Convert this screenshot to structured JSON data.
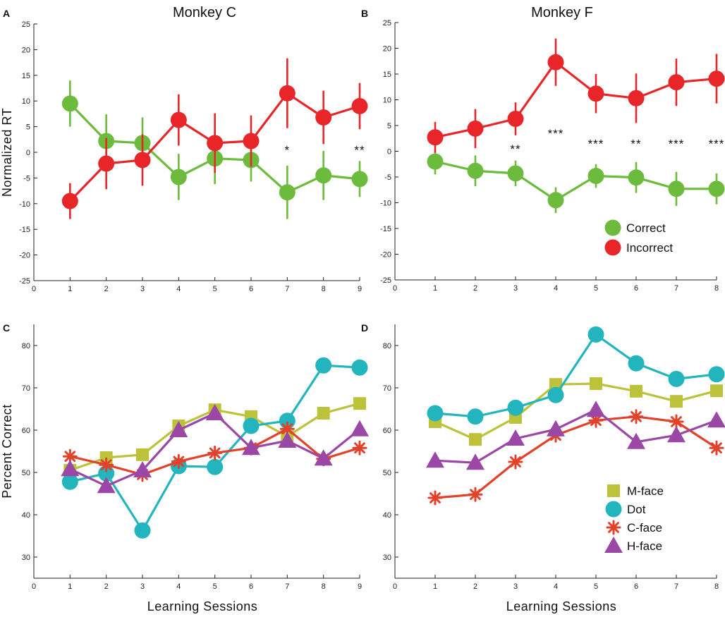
{
  "colors": {
    "correct": "#6cbb3c",
    "incorrect": "#e8262a",
    "mface": "#bcc23a",
    "dot": "#23b5bd",
    "cface": "#e2412a",
    "hface": "#9b47a6"
  },
  "chart_data": [
    {
      "id": "A",
      "letter": "A",
      "type": "line",
      "title": "Monkey C",
      "ylabel": "Normalized RT",
      "xlabel": "",
      "xlim": [
        0,
        9
      ],
      "ylim": [
        -25,
        25
      ],
      "xticks": [
        0,
        1,
        2,
        3,
        4,
        5,
        6,
        7,
        8,
        9
      ],
      "yticks": [
        -25,
        -20,
        -15,
        -10,
        -5,
        0,
        5,
        10,
        15,
        20,
        25
      ],
      "series": [
        {
          "name": "Correct",
          "marker": "circle",
          "color_key": "correct",
          "x": [
            1,
            2,
            3,
            4,
            5,
            6,
            7,
            8,
            9
          ],
          "values": [
            9.5,
            2.2,
            1.8,
            -4.8,
            -1.2,
            -1.5,
            -7.8,
            -4.5,
            -5.2
          ],
          "errors": [
            4.5,
            5.2,
            5.0,
            4.5,
            5.0,
            4.2,
            5.2,
            4.8,
            3.5
          ]
        },
        {
          "name": "Incorrect",
          "marker": "circle",
          "color_key": "incorrect",
          "x": [
            1,
            2,
            3,
            4,
            5,
            6,
            7,
            8,
            9
          ],
          "values": [
            -9.5,
            -2.2,
            -1.5,
            6.3,
            1.8,
            2.2,
            11.5,
            6.8,
            9.0
          ],
          "errors": [
            3.5,
            5.0,
            5.0,
            5.0,
            5.8,
            5.0,
            6.8,
            5.2,
            4.5
          ]
        }
      ],
      "annotations": [
        {
          "x": 7,
          "y": 0.5,
          "text": "*"
        },
        {
          "x": 9,
          "y": 0.5,
          "text": "**"
        }
      ]
    },
    {
      "id": "B",
      "letter": "B",
      "type": "line",
      "title": "Monkey F",
      "ylabel": "",
      "xlabel": "",
      "xlim": [
        0,
        8
      ],
      "ylim": [
        -25,
        25
      ],
      "xticks": [
        0,
        1,
        2,
        3,
        4,
        5,
        6,
        7,
        8
      ],
      "yticks": [
        -25,
        -20,
        -15,
        -10,
        -5,
        0,
        5,
        10,
        15,
        20,
        25
      ],
      "series": [
        {
          "name": "Correct",
          "marker": "circle",
          "color_key": "correct",
          "x": [
            1,
            2,
            3,
            4,
            5,
            6,
            7,
            8
          ],
          "values": [
            -2.0,
            -3.8,
            -4.3,
            -9.5,
            -4.8,
            -5.1,
            -7.3,
            -7.3
          ],
          "errors": [
            2.5,
            3.0,
            2.5,
            2.5,
            2.3,
            3.0,
            3.3,
            3.0
          ]
        },
        {
          "name": "Incorrect",
          "marker": "circle",
          "color_key": "incorrect",
          "x": [
            1,
            2,
            3,
            4,
            5,
            6,
            7,
            8
          ],
          "values": [
            2.7,
            4.4,
            6.3,
            17.3,
            11.2,
            10.3,
            13.4,
            14.1
          ],
          "errors": [
            3.0,
            3.8,
            3.2,
            4.6,
            3.8,
            4.8,
            4.6,
            4.8
          ]
        }
      ],
      "annotations": [
        {
          "x": 3,
          "y": 0.5,
          "text": "**"
        },
        {
          "x": 4,
          "y": 3.5,
          "text": "***"
        },
        {
          "x": 5,
          "y": 1.5,
          "text": "***"
        },
        {
          "x": 6,
          "y": 1.5,
          "text": "**"
        },
        {
          "x": 7,
          "y": 1.5,
          "text": "***"
        },
        {
          "x": 8,
          "y": 1.5,
          "text": "***"
        }
      ],
      "legend": {
        "placement": "bottom-right",
        "entries": [
          {
            "label": "Correct",
            "marker": "circle",
            "color_key": "correct"
          },
          {
            "label": "Incorrect",
            "marker": "circle",
            "color_key": "incorrect"
          }
        ]
      }
    },
    {
      "id": "C",
      "letter": "C",
      "type": "line",
      "title": "",
      "ylabel": "Percent Correct",
      "xlabel": "Learning Sessions",
      "xlim": [
        0,
        9
      ],
      "ylim": [
        25,
        85
      ],
      "xticks": [
        0,
        1,
        2,
        3,
        4,
        5,
        6,
        7,
        8,
        9
      ],
      "yticks": [
        30,
        40,
        50,
        60,
        70,
        80
      ],
      "series": [
        {
          "name": "M-face",
          "marker": "square",
          "color_key": "mface",
          "x": [
            1,
            2,
            3,
            4,
            5,
            6,
            7,
            8,
            9
          ],
          "values": [
            50.5,
            53.5,
            54.2,
            61.0,
            64.8,
            63.2,
            58.5,
            64.0,
            66.3
          ]
        },
        {
          "name": "Dot",
          "marker": "circle",
          "color_key": "dot",
          "x": [
            1,
            2,
            3,
            4,
            5,
            6,
            7,
            8,
            9
          ],
          "values": [
            47.8,
            49.8,
            36.3,
            51.5,
            51.3,
            61.0,
            62.2,
            75.3,
            74.8
          ]
        },
        {
          "name": "C-face",
          "marker": "asterisk",
          "color_key": "cface",
          "x": [
            1,
            2,
            3,
            4,
            5,
            6,
            7,
            8,
            9
          ],
          "values": [
            53.8,
            51.8,
            49.5,
            52.6,
            54.6,
            55.8,
            60.3,
            53.2,
            55.8
          ]
        },
        {
          "name": "H-face",
          "marker": "triangle",
          "color_key": "hface",
          "x": [
            1,
            2,
            3,
            4,
            5,
            6,
            7,
            8,
            9
          ],
          "values": [
            50.8,
            46.8,
            50.5,
            60.0,
            64.0,
            55.8,
            57.5,
            53.3,
            60.2
          ]
        }
      ]
    },
    {
      "id": "D",
      "letter": "D",
      "type": "line",
      "title": "",
      "ylabel": "",
      "xlabel": "Learning Sessions",
      "xlim": [
        0,
        8
      ],
      "ylim": [
        25,
        85
      ],
      "xticks": [
        0,
        1,
        2,
        3,
        4,
        5,
        6,
        7,
        8
      ],
      "yticks": [
        30,
        40,
        50,
        60,
        70,
        80
      ],
      "series": [
        {
          "name": "M-face",
          "marker": "square",
          "color_key": "mface",
          "x": [
            1,
            2,
            3,
            4,
            5,
            6,
            7,
            8
          ],
          "values": [
            62.0,
            57.8,
            63.0,
            70.8,
            71.0,
            69.2,
            66.8,
            69.3
          ]
        },
        {
          "name": "Dot",
          "marker": "circle",
          "color_key": "dot",
          "x": [
            1,
            2,
            3,
            4,
            5,
            6,
            7,
            8
          ],
          "values": [
            64.0,
            63.2,
            65.3,
            68.3,
            82.6,
            75.8,
            72.1,
            73.2
          ]
        },
        {
          "name": "C-face",
          "marker": "asterisk",
          "color_key": "cface",
          "x": [
            1,
            2,
            3,
            4,
            5,
            6,
            7,
            8
          ],
          "values": [
            44.0,
            44.8,
            52.5,
            58.8,
            62.3,
            63.2,
            62.0,
            55.8
          ]
        },
        {
          "name": "H-face",
          "marker": "triangle",
          "color_key": "hface",
          "x": [
            1,
            2,
            3,
            4,
            5,
            6,
            7,
            8
          ],
          "values": [
            52.8,
            52.3,
            58.0,
            60.2,
            64.8,
            57.2,
            58.8,
            62.3
          ]
        }
      ],
      "legend": {
        "placement": "bottom-right",
        "entries": [
          {
            "label": "M-face",
            "marker": "square",
            "color_key": "mface"
          },
          {
            "label": "Dot",
            "marker": "circle",
            "color_key": "dot"
          },
          {
            "label": "C-face",
            "marker": "asterisk",
            "color_key": "cface"
          },
          {
            "label": "H-face",
            "marker": "triangle",
            "color_key": "hface"
          }
        ]
      }
    }
  ]
}
